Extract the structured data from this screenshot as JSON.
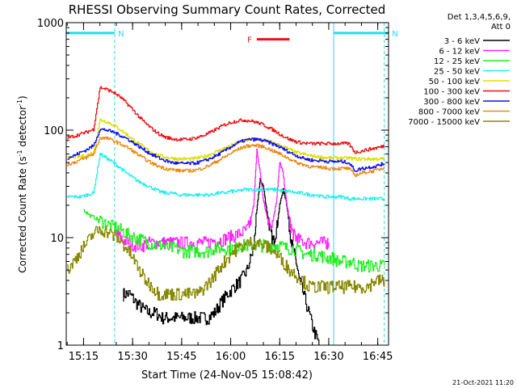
{
  "chart_data": {
    "type": "line",
    "title": "RHESSI Observing Summary Count Rates, Corrected",
    "xlabel": "Start Time (24-Nov-05 15:08:42)",
    "ylabel": "Corrected Count Rate (s⁻¹ detector⁻¹)",
    "ylabel_parts": [
      "Corrected Count Rate (s",
      "-1",
      " detector",
      "-1",
      ")"
    ],
    "yscale": "log",
    "ylim": [
      1,
      1000
    ],
    "xlim_minutes": [
      -5.3,
      93.3
    ],
    "y_ticks": [
      {
        "value": 1,
        "label": "1"
      },
      {
        "value": 10,
        "label": "10"
      },
      {
        "value": 100,
        "label": "100"
      },
      {
        "value": 1000,
        "label": "1000"
      }
    ],
    "x_ticks": [
      {
        "value": 0,
        "label": "15:15"
      },
      {
        "value": 15,
        "label": "15:30"
      },
      {
        "value": 30,
        "label": "15:45"
      },
      {
        "value": 45,
        "label": "16:00"
      },
      {
        "value": 60,
        "label": "16:15"
      },
      {
        "value": 75,
        "label": "16:30"
      },
      {
        "value": 90,
        "label": "16:45"
      }
    ],
    "legend_header": [
      "Det 1,3,4,5,6,9,",
      "Att 0"
    ],
    "legend_position": "right",
    "footer_timestamp": "21-Oct-2021 11:20",
    "flags": [
      {
        "label": "N",
        "start": -5.3,
        "end": 9.5,
        "level": 800,
        "color": "#22ddee"
      },
      {
        "label": "N",
        "start": 76.5,
        "end": 93.3,
        "level": 800,
        "color": "#22ddee"
      },
      {
        "label": "F",
        "start": 53,
        "end": 63,
        "level": 700,
        "color": "#ee1111"
      }
    ],
    "vertical_markers": [
      {
        "x": -5.3,
        "style": "solid",
        "color": "#22ddee"
      },
      {
        "x": 9.5,
        "style": "dashed",
        "color": "#22ddee"
      },
      {
        "x": 76.5,
        "style": "solid",
        "color": "#22ddee"
      },
      {
        "x": 92,
        "style": "dashed",
        "color": "#22ddee"
      }
    ],
    "series": [
      {
        "name": "3 - 6 keV",
        "color": "#000000",
        "x": [
          12,
          14,
          16,
          18,
          20,
          22,
          24,
          26,
          28,
          30,
          32,
          34,
          36,
          38,
          40,
          42,
          44,
          46,
          48,
          50,
          52,
          53,
          54,
          55,
          56,
          57,
          58,
          59,
          60,
          61,
          62,
          63,
          64,
          65,
          66,
          68,
          70,
          72
        ],
        "y": [
          3,
          3,
          2.5,
          2.2,
          2,
          2,
          1.8,
          1.8,
          1.8,
          1.8,
          1.8,
          1.8,
          1.8,
          1.8,
          2,
          2.5,
          3,
          3.5,
          4,
          5,
          8,
          18,
          35,
          30,
          18,
          12,
          9,
          12,
          20,
          28,
          22,
          12,
          8,
          6,
          4,
          2.5,
          1.5,
          1
        ]
      },
      {
        "name": "6 - 12 keV",
        "color": "#ff22ff",
        "x": [
          10,
          12,
          14,
          16,
          18,
          20,
          22,
          24,
          26,
          28,
          30,
          32,
          34,
          36,
          38,
          40,
          42,
          44,
          46,
          48,
          50,
          51,
          52,
          53,
          54,
          55,
          56,
          57,
          58,
          59,
          60,
          61,
          62,
          63,
          64,
          65,
          66,
          68,
          70,
          72,
          74,
          75
        ],
        "y": [
          11,
          9.5,
          9,
          8.5,
          8.5,
          9,
          9,
          9,
          9,
          9,
          9,
          9,
          9,
          9,
          9,
          9.5,
          9.5,
          10,
          10.5,
          11,
          12,
          14,
          20,
          65,
          40,
          22,
          16,
          13,
          15,
          22,
          50,
          40,
          22,
          14,
          11,
          10,
          9.5,
          9,
          9,
          9,
          9,
          9
        ]
      },
      {
        "name": "12 - 25 keV",
        "color": "#22ee22",
        "x": [
          0,
          2,
          4,
          6,
          8,
          10,
          12,
          14,
          16,
          18,
          20,
          22,
          24,
          26,
          28,
          30,
          32,
          34,
          36,
          38,
          40,
          42,
          44,
          46,
          48,
          50,
          52,
          54,
          56,
          58,
          60,
          62,
          64,
          66,
          68,
          70,
          72,
          74,
          76,
          78,
          80,
          82,
          84,
          86,
          88,
          90,
          92
        ],
        "y": [
          18,
          16,
          15,
          14,
          13,
          12.5,
          11.5,
          10.5,
          10,
          9.5,
          9,
          8.5,
          8.5,
          8,
          8,
          7.5,
          7.5,
          7.5,
          7.5,
          7.5,
          8,
          8,
          8,
          8,
          8.5,
          8.5,
          8.5,
          8.5,
          8.5,
          8.5,
          8.5,
          8,
          8,
          7.5,
          7,
          7,
          7,
          6.5,
          6.5,
          6,
          6,
          6,
          5.5,
          5.5,
          5.5,
          5.5,
          5.5
        ]
      },
      {
        "name": "25 - 50 keV",
        "color": "#22eeee",
        "x": [
          -5,
          -3,
          -1,
          1,
          3,
          5,
          7,
          9,
          11,
          13,
          15,
          17,
          19,
          21,
          23,
          25,
          27,
          29,
          31,
          33,
          35,
          37,
          39,
          41,
          43,
          45,
          47,
          49,
          51,
          53,
          55,
          57,
          59,
          61,
          63,
          65,
          67,
          69,
          71,
          73,
          75,
          77,
          79,
          81,
          83,
          85,
          87,
          89,
          91,
          92
        ],
        "y": [
          24,
          24,
          24,
          25,
          26,
          60,
          55,
          50,
          45,
          40,
          36,
          33,
          31,
          29,
          27,
          26,
          26,
          25,
          25,
          25,
          25,
          25,
          25,
          26,
          26,
          27,
          27,
          28,
          28,
          28,
          28,
          28,
          28,
          27,
          27,
          26,
          26,
          25,
          25,
          24,
          24,
          24,
          24,
          23,
          23,
          23,
          23,
          23,
          23,
          23
        ]
      },
      {
        "name": "50 - 100 keV",
        "color": "#dddd00",
        "x": [
          -5,
          -3,
          -1,
          1,
          3,
          5,
          7,
          9,
          11,
          13,
          15,
          17,
          19,
          21,
          23,
          25,
          27,
          29,
          31,
          33,
          35,
          37,
          39,
          41,
          43,
          45,
          47,
          49,
          51,
          53,
          55,
          57,
          59,
          61,
          63,
          65,
          67,
          69,
          71,
          73,
          75,
          77,
          79,
          81,
          83,
          85,
          87,
          89,
          91,
          92
        ],
        "y": [
          55,
          56,
          57,
          58,
          62,
          125,
          120,
          112,
          102,
          92,
          82,
          74,
          67,
          62,
          58,
          56,
          55,
          54,
          54,
          54,
          55,
          57,
          60,
          64,
          68,
          72,
          76,
          80,
          82,
          82,
          80,
          78,
          74,
          70,
          66,
          62,
          60,
          58,
          57,
          56,
          55,
          55,
          55,
          55,
          54,
          54,
          54,
          54,
          54,
          54
        ]
      },
      {
        "name": "100 - 300 keV",
        "color": "#ee1111",
        "x": [
          -5,
          -3,
          -1,
          1,
          3,
          5,
          7,
          9,
          11,
          13,
          15,
          17,
          19,
          21,
          23,
          25,
          27,
          29,
          31,
          33,
          35,
          37,
          39,
          41,
          43,
          45,
          47,
          49,
          51,
          53,
          55,
          57,
          59,
          61,
          63,
          65,
          67,
          69,
          71,
          73,
          75,
          77,
          79,
          81,
          83,
          85,
          87,
          89,
          91,
          92
        ],
        "y": [
          85,
          88,
          92,
          96,
          102,
          250,
          240,
          225,
          205,
          180,
          155,
          132,
          115,
          102,
          92,
          86,
          83,
          82,
          82,
          83,
          86,
          90,
          96,
          104,
          112,
          118,
          122,
          124,
          122,
          118,
          112,
          104,
          96,
          88,
          82,
          78,
          76,
          75,
          75,
          75,
          75,
          75,
          75,
          75,
          62,
          64,
          66,
          68,
          70,
          72
        ]
      },
      {
        "name": "300 - 800 keV",
        "color": "#1111ee",
        "x": [
          -5,
          -3,
          -1,
          1,
          3,
          5,
          7,
          9,
          11,
          13,
          15,
          17,
          19,
          21,
          23,
          25,
          27,
          29,
          31,
          33,
          35,
          37,
          39,
          41,
          43,
          45,
          47,
          49,
          51,
          53,
          55,
          57,
          59,
          61,
          63,
          65,
          67,
          69,
          71,
          73,
          75,
          77,
          79,
          81,
          83,
          85,
          87,
          89,
          91,
          92
        ],
        "y": [
          55,
          58,
          62,
          66,
          72,
          102,
          100,
          96,
          90,
          84,
          77,
          70,
          64,
          59,
          55,
          52,
          50,
          49,
          49,
          49,
          50,
          52,
          55,
          59,
          64,
          70,
          76,
          80,
          82,
          82,
          80,
          76,
          72,
          67,
          62,
          58,
          55,
          53,
          52,
          52,
          51,
          51,
          51,
          50,
          42,
          44,
          45,
          46,
          48,
          49
        ]
      },
      {
        "name": "800 - 7000 keV",
        "color": "#ee8811",
        "x": [
          -5,
          -3,
          -1,
          1,
          3,
          5,
          7,
          9,
          11,
          13,
          15,
          17,
          19,
          21,
          23,
          25,
          27,
          29,
          31,
          33,
          35,
          37,
          39,
          41,
          43,
          45,
          47,
          49,
          51,
          53,
          55,
          57,
          59,
          61,
          63,
          65,
          67,
          69,
          71,
          73,
          75,
          77,
          79,
          81,
          83,
          85,
          87,
          89,
          91,
          92
        ],
        "y": [
          48,
          50,
          53,
          56,
          60,
          85,
          84,
          80,
          75,
          70,
          64,
          58,
          53,
          49,
          46,
          44,
          43,
          42,
          42,
          42,
          43,
          45,
          48,
          52,
          56,
          61,
          66,
          70,
          72,
          72,
          70,
          66,
          62,
          58,
          54,
          50,
          48,
          46,
          45,
          45,
          44,
          44,
          44,
          44,
          38,
          40,
          41,
          42,
          44,
          45
        ]
      },
      {
        "name": "7000 - 15000 keV",
        "color": "#888800",
        "x": [
          -5,
          -3,
          -1,
          1,
          3,
          5,
          7,
          9,
          11,
          13,
          15,
          17,
          19,
          21,
          23,
          25,
          27,
          29,
          31,
          33,
          35,
          37,
          39,
          41,
          43,
          45,
          47,
          49,
          51,
          53,
          55,
          57,
          59,
          61,
          63,
          65,
          67,
          69,
          71,
          73,
          75,
          77,
          79,
          81,
          83,
          85,
          87,
          89,
          91,
          92
        ],
        "y": [
          5,
          6,
          7.5,
          9,
          11,
          12,
          11.5,
          10.5,
          9.5,
          8,
          6.5,
          5,
          4,
          3.5,
          3,
          3,
          3,
          3,
          3,
          3,
          3,
          3.5,
          4,
          5,
          6,
          7,
          8,
          8.5,
          9,
          9,
          8.5,
          8,
          7,
          6,
          5,
          4.5,
          4,
          3.5,
          3.5,
          3.5,
          3.5,
          3.5,
          3.5,
          3.5,
          3.5,
          3.5,
          3.5,
          4,
          4,
          4
        ]
      }
    ]
  }
}
